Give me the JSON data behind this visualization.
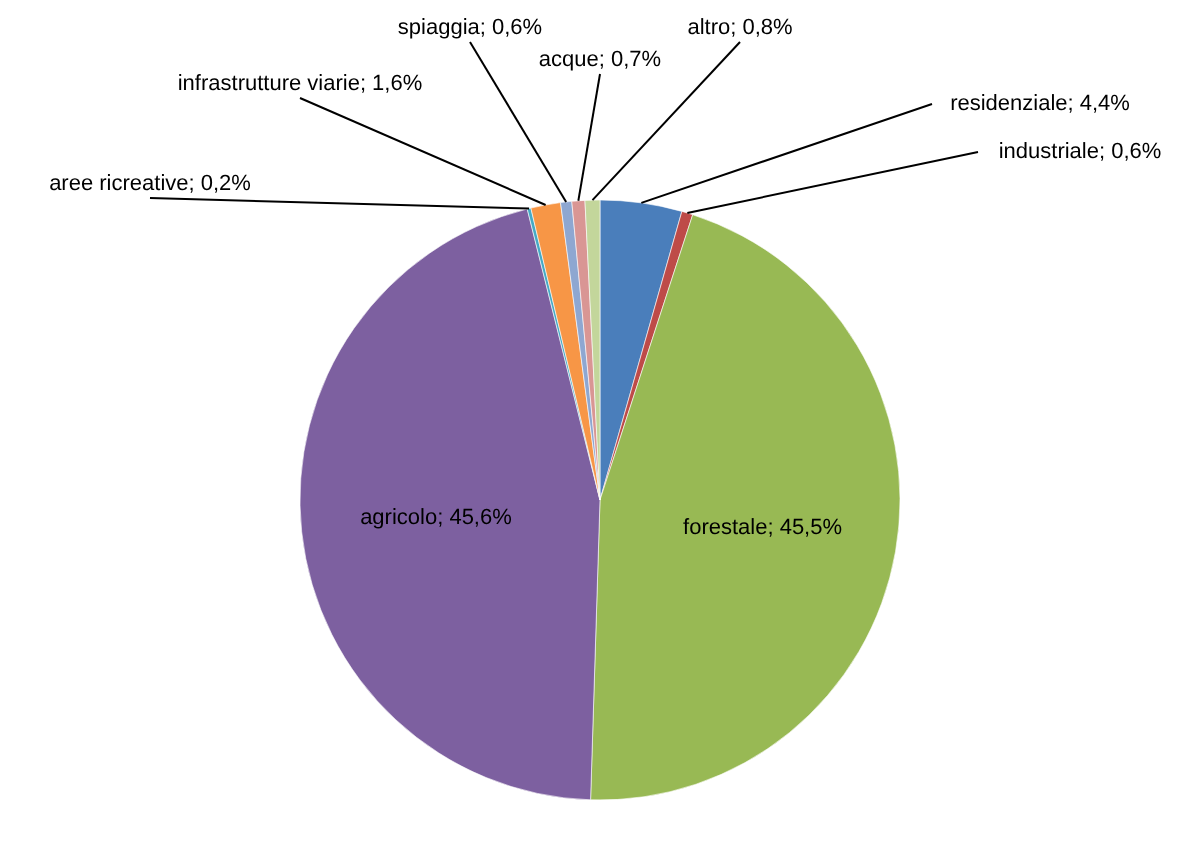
{
  "chart_data": {
    "type": "pie",
    "categories": [
      "residenziale",
      "industriale",
      "forestale",
      "agricolo",
      "aree ricreative",
      "infrastrutture viarie",
      "spiaggia",
      "acque",
      "altro"
    ],
    "values": [
      4.4,
      0.6,
      45.5,
      45.6,
      0.2,
      1.6,
      0.6,
      0.7,
      0.8
    ],
    "value_labels": [
      "4,4%",
      "0,6%",
      "45,5%",
      "45,6%",
      "0,2%",
      "1,6%",
      "0,6%",
      "0,7%",
      "0,8%"
    ],
    "colors": [
      "#4a7ebb",
      "#be4b48",
      "#98b954",
      "#7d60a0",
      "#46aac5",
      "#f79646",
      "#8ea7d1",
      "#d99694",
      "#c3d69b"
    ]
  }
}
